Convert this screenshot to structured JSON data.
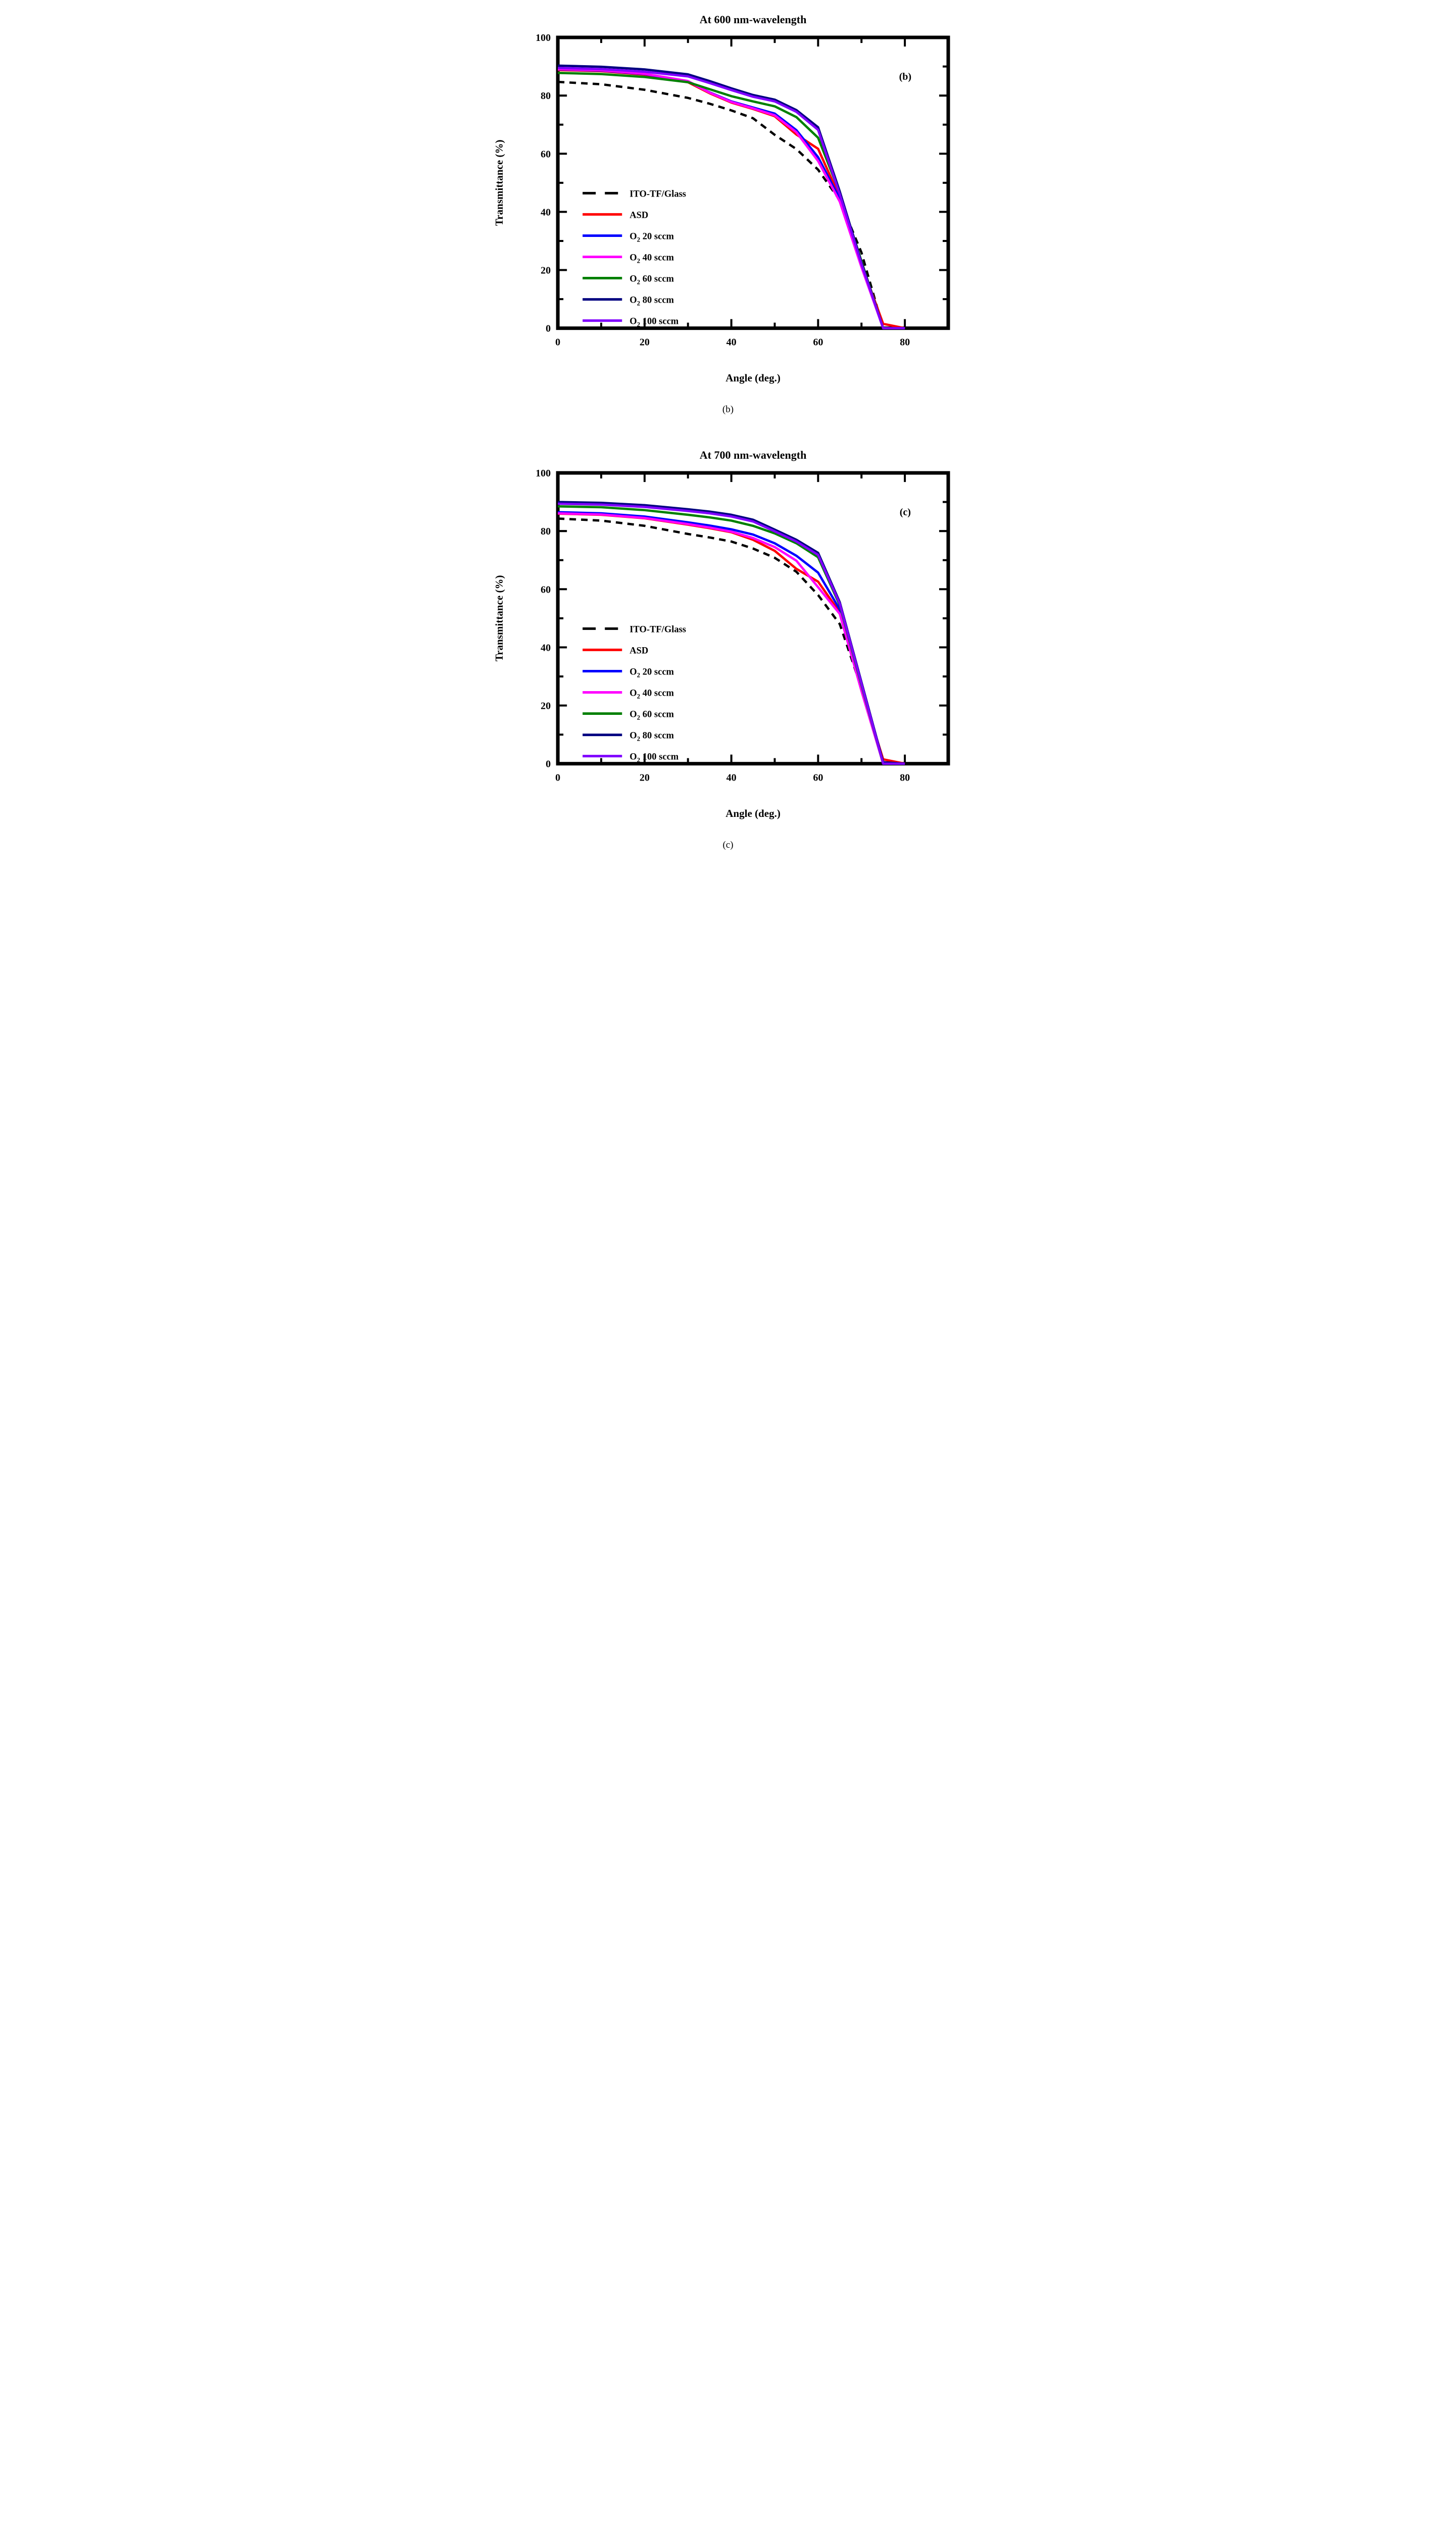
{
  "figure": {
    "background": "#ffffff"
  },
  "captions": {
    "b": "(b)",
    "c": "(c)"
  },
  "chart_data": [
    {
      "type": "line",
      "panel": "(b)",
      "title": "At 600 nm-wavelength",
      "xlabel": "Angle (deg.)",
      "ylabel": "Transmittance (%)",
      "xlim": [
        0,
        90
      ],
      "ylim": [
        0,
        100
      ],
      "x_major_ticks": [
        0,
        20,
        40,
        60,
        80
      ],
      "x_minor_ticks": [
        10,
        30,
        50,
        70
      ],
      "y_major_ticks": [
        0,
        20,
        40,
        60,
        80,
        100
      ],
      "y_minor_ticks": [
        10,
        30,
        50,
        70,
        90
      ],
      "grid": false,
      "legend_position": "inside-lower-left",
      "x": [
        0,
        10,
        20,
        30,
        35,
        40,
        45,
        50,
        55,
        60,
        65,
        70,
        75,
        80
      ],
      "series": [
        {
          "name": "ITO-TF/Glass",
          "legend": {
            "pre": "ITO-TF/Glass"
          },
          "color": "#000000",
          "style": "dashed",
          "values": [
            84.7,
            83.9,
            82.0,
            79.2,
            77.2,
            74.9,
            72.2,
            66.5,
            61.6,
            54.5,
            44.0,
            26.0,
            0,
            0
          ]
        },
        {
          "name": "ASD",
          "legend": {
            "pre": "ASD"
          },
          "color": "#ff0000",
          "style": "solid",
          "values": [
            88.8,
            88.4,
            87.2,
            84.6,
            80.8,
            77.6,
            75.4,
            72.9,
            66.6,
            61.7,
            45.0,
            22.0,
            1.5,
            0
          ]
        },
        {
          "name": "O2 20 sccm",
          "legend": {
            "pre": "O",
            "sub": "2",
            "post": " 20 sccm"
          },
          "color": "#0000ff",
          "style": "solid",
          "values": [
            89.0,
            88.6,
            87.4,
            84.9,
            81.1,
            78.0,
            75.9,
            73.8,
            68.1,
            58.8,
            44.5,
            21.5,
            0,
            0
          ]
        },
        {
          "name": "O2 40 sccm",
          "legend": {
            "pre": "O",
            "sub": "2",
            "post": " 40 sccm"
          },
          "color": "#ff00ff",
          "style": "solid",
          "values": [
            89.1,
            88.7,
            87.5,
            85.0,
            81.0,
            77.8,
            75.6,
            73.2,
            67.4,
            57.5,
            43.5,
            21.0,
            0,
            0
          ]
        },
        {
          "name": "O2 60 sccm",
          "legend": {
            "pre": "O",
            "sub": "2",
            "post": " 60 sccm"
          },
          "color": "#008000",
          "style": "solid",
          "values": [
            87.8,
            87.4,
            86.4,
            84.6,
            82.2,
            79.8,
            78.0,
            76.3,
            72.6,
            65.5,
            46.5,
            23.0,
            0,
            0
          ]
        },
        {
          "name": "O2 80 sccm",
          "legend": {
            "pre": "O",
            "sub": "2",
            "post": " 80 sccm"
          },
          "color": "#000080",
          "style": "solid",
          "values": [
            90.3,
            89.9,
            89.0,
            87.3,
            85.0,
            82.5,
            80.2,
            78.6,
            75.0,
            69.1,
            47.0,
            22.5,
            0,
            0
          ]
        },
        {
          "name": "O2 100 sccm",
          "legend": {
            "pre": "O",
            "sub": "2",
            "post": " 100 sccm"
          },
          "color": "#8000ff",
          "style": "solid",
          "values": [
            89.5,
            89.1,
            88.2,
            86.6,
            84.3,
            81.9,
            79.6,
            78.0,
            74.4,
            68.2,
            46.0,
            22.0,
            0,
            0
          ]
        }
      ]
    },
    {
      "type": "line",
      "panel": "(c)",
      "title": "At 700 nm-wavelength",
      "xlabel": "Angle (deg.)",
      "ylabel": "Transmittance (%)",
      "xlim": [
        0,
        90
      ],
      "ylim": [
        0,
        100
      ],
      "x_major_ticks": [
        0,
        20,
        40,
        60,
        80
      ],
      "x_minor_ticks": [
        10,
        30,
        50,
        70
      ],
      "y_major_ticks": [
        0,
        20,
        40,
        60,
        80,
        100
      ],
      "y_minor_ticks": [
        10,
        30,
        50,
        70,
        90
      ],
      "grid": false,
      "legend_position": "inside-lower-left",
      "x": [
        0,
        10,
        20,
        30,
        35,
        40,
        45,
        50,
        55,
        60,
        65,
        70,
        75,
        80
      ],
      "series": [
        {
          "name": "ITO-TF/Glass",
          "legend": {
            "pre": "ITO-TF/Glass"
          },
          "color": "#000000",
          "style": "dashed",
          "values": [
            84.3,
            83.6,
            81.8,
            79.0,
            77.8,
            76.4,
            74.0,
            70.8,
            66.0,
            58.0,
            48.0,
            26.0,
            0,
            0
          ]
        },
        {
          "name": "ASD",
          "legend": {
            "pre": "ASD"
          },
          "color": "#ff0000",
          "style": "solid",
          "values": [
            86.0,
            85.6,
            84.4,
            82.2,
            81.0,
            79.6,
            77.0,
            73.2,
            67.0,
            62.6,
            52.0,
            25.5,
            1.5,
            0
          ]
        },
        {
          "name": "O2 20 sccm",
          "legend": {
            "pre": "O",
            "sub": "2",
            "post": " 20 sccm"
          },
          "color": "#0000ff",
          "style": "solid",
          "values": [
            86.5,
            86.1,
            85.0,
            83.0,
            81.9,
            80.6,
            78.8,
            75.8,
            71.5,
            65.7,
            53.0,
            26.0,
            0,
            0
          ]
        },
        {
          "name": "O2 40 sccm",
          "legend": {
            "pre": "O",
            "sub": "2",
            "post": " 40 sccm"
          },
          "color": "#ff00ff",
          "style": "solid",
          "values": [
            86.1,
            85.7,
            84.5,
            82.4,
            81.2,
            79.8,
            77.6,
            74.5,
            69.8,
            60.7,
            51.5,
            25.0,
            0,
            0
          ]
        },
        {
          "name": "O2 60 sccm",
          "legend": {
            "pre": "O",
            "sub": "2",
            "post": " 60 sccm"
          },
          "color": "#008000",
          "style": "solid",
          "values": [
            88.5,
            88.2,
            87.2,
            85.6,
            84.7,
            83.6,
            81.8,
            79.2,
            75.8,
            71.0,
            54.5,
            27.0,
            0,
            0
          ]
        },
        {
          "name": "O2 80 sccm",
          "legend": {
            "pre": "O",
            "sub": "2",
            "post": " 80 sccm"
          },
          "color": "#000080",
          "style": "solid",
          "values": [
            90.0,
            89.7,
            88.9,
            87.5,
            86.7,
            85.6,
            83.9,
            80.5,
            77.0,
            72.5,
            55.5,
            28.0,
            0.5,
            0
          ]
        },
        {
          "name": "O2 100 sccm",
          "legend": {
            "pre": "O",
            "sub": "2",
            "post": " 100 sccm"
          },
          "color": "#8000ff",
          "style": "solid",
          "values": [
            89.4,
            89.1,
            88.3,
            86.9,
            86.1,
            85.0,
            83.3,
            79.9,
            76.4,
            71.8,
            55.0,
            27.5,
            0,
            0
          ]
        }
      ]
    }
  ]
}
